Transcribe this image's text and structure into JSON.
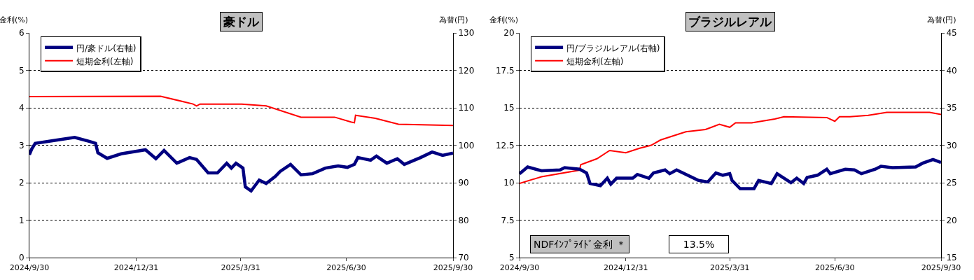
{
  "chart_data": [
    {
      "type": "line",
      "title": "豪ドル",
      "ylabel": "金利(%)",
      "y2label": "為替(円)",
      "grid": "y",
      "legend": "top left",
      "xlim": [
        "2024-09-30",
        "2025-09-30"
      ],
      "xticks": [
        {
          "value": "2024-09-30",
          "label": "2024/9/30"
        },
        {
          "value": "2024-12-31",
          "label": "2024/12/31"
        },
        {
          "value": "2025-03-31",
          "label": "2025/3/31"
        },
        {
          "value": "2025-06-30",
          "label": "2025/6/30"
        },
        {
          "value": "2025-09-30",
          "label": "2025/9/30"
        }
      ],
      "ylim": [
        0,
        6
      ],
      "yticks": [
        0,
        1,
        2,
        3,
        4,
        5,
        6
      ],
      "y2lim": [
        70,
        130
      ],
      "y2ticks": [
        70,
        80,
        90,
        100,
        110,
        120,
        130
      ],
      "series": [
        {
          "name": "円/豪ドル(右軸)",
          "color": "#000080",
          "axis": "y2",
          "x": [
            "2024-09-30",
            "2024-10-02",
            "2024-10-05",
            "2024-10-24",
            "2024-11-08",
            "2024-11-21",
            "2024-11-26",
            "2024-11-28",
            "2024-12-06",
            "2024-12-18",
            "2025-01-08",
            "2025-01-17",
            "2025-01-24",
            "2025-02-04",
            "2025-02-15",
            "2025-02-21",
            "2025-03-03",
            "2025-03-11",
            "2025-03-19",
            "2025-03-23",
            "2025-03-27",
            "2025-04-02",
            "2025-04-04",
            "2025-04-09",
            "2025-04-16",
            "2025-04-22",
            "2025-04-30",
            "2025-05-04",
            "2025-05-13",
            "2025-05-22",
            "2025-06-01",
            "2025-06-12",
            "2025-06-23",
            "2025-07-01",
            "2025-07-07",
            "2025-07-10",
            "2025-07-21",
            "2025-07-26",
            "2025-08-04",
            "2025-08-13",
            "2025-08-19",
            "2025-09-02",
            "2025-09-12",
            "2025-09-21",
            "2025-09-30"
          ],
          "values": [
            97.5,
            99.0,
            100.5,
            101.4,
            102.1,
            101.0,
            100.5,
            98.0,
            96.5,
            97.7,
            98.8,
            96.4,
            98.6,
            95.2,
            96.7,
            96.2,
            92.6,
            92.6,
            95.2,
            93.9,
            95.2,
            93.9,
            88.9,
            87.8,
            90.7,
            89.8,
            91.7,
            93.0,
            94.9,
            92.1,
            92.4,
            93.9,
            94.5,
            94.1,
            94.9,
            96.7,
            96.0,
            97.1,
            95.2,
            96.4,
            94.9,
            96.7,
            98.2,
            97.3,
            97.9
          ]
        },
        {
          "name": "短期金利(左軸)",
          "color": "#ff0000",
          "x": [
            "2024-09-30",
            "2025-01-21",
            "2025-02-18",
            "2025-02-21",
            "2025-02-24",
            "2025-04-01",
            "2025-04-22",
            "2025-05-22",
            "2025-06-20",
            "2025-07-04",
            "2025-07-07",
            "2025-07-08",
            "2025-07-25",
            "2025-08-14",
            "2025-09-30"
          ],
          "values": [
            4.3,
            4.31,
            4.1,
            4.05,
            4.1,
            4.1,
            4.05,
            3.75,
            3.75,
            3.62,
            3.6,
            3.8,
            3.72,
            3.56,
            3.53
          ]
        }
      ]
    },
    {
      "type": "line",
      "title": "ブラジルレアル",
      "ylabel": "金利(%)",
      "y2label": "為替(円)",
      "grid": "y",
      "legend": "top left",
      "xlim": [
        "2024-09-30",
        "2025-09-30"
      ],
      "xticks": [
        {
          "value": "2024-09-30",
          "label": "2024/9/30"
        },
        {
          "value": "2024-12-31",
          "label": "2024/12/31"
        },
        {
          "value": "2025-03-31",
          "label": "2025/3/31"
        },
        {
          "value": "2025-06-30",
          "label": "2025/6/30"
        },
        {
          "value": "2025-09-30",
          "label": "2025/9/30"
        }
      ],
      "ylim": [
        5,
        20
      ],
      "yticks": [
        5,
        7.5,
        10,
        12.5,
        15,
        17.5,
        20
      ],
      "y2lim": [
        15,
        45
      ],
      "y2ticks": [
        15,
        20,
        25,
        30,
        35,
        40,
        45
      ],
      "annotations": [
        "NDFｲﾝﾌﾟﾗｲﾄﾞ金利 ＊",
        "13.5%"
      ],
      "series": [
        {
          "name": "円/ブラジルレアル(右軸)",
          "color": "#000080",
          "axis": "y2",
          "x": [
            "2024-09-30",
            "2024-10-07",
            "2024-10-19",
            "2024-11-04",
            "2024-11-08",
            "2024-11-21",
            "2024-11-27",
            "2024-11-30",
            "2024-12-09",
            "2024-12-15",
            "2024-12-18",
            "2024-12-23",
            "2025-01-06",
            "2025-01-10",
            "2025-01-20",
            "2025-01-24",
            "2025-02-03",
            "2025-02-07",
            "2025-02-13",
            "2025-03-04",
            "2025-03-12",
            "2025-03-19",
            "2025-03-25",
            "2025-03-31",
            "2025-04-02",
            "2025-04-09",
            "2025-04-21",
            "2025-04-25",
            "2025-05-06",
            "2025-05-11",
            "2025-05-23",
            "2025-05-28",
            "2025-06-03",
            "2025-06-06",
            "2025-06-15",
            "2025-06-23",
            "2025-06-26",
            "2025-07-09",
            "2025-07-17",
            "2025-07-23",
            "2025-08-04",
            "2025-08-09",
            "2025-08-19",
            "2025-09-08",
            "2025-09-14",
            "2025-09-23",
            "2025-09-30"
          ],
          "values": [
            26.2,
            27.1,
            26.6,
            26.7,
            27.0,
            26.8,
            26.3,
            24.9,
            24.6,
            25.6,
            24.8,
            25.6,
            25.6,
            26.1,
            25.6,
            26.3,
            26.7,
            26.2,
            26.7,
            25.3,
            25.1,
            26.3,
            26.0,
            26.2,
            25.3,
            24.2,
            24.2,
            25.3,
            24.9,
            26.2,
            25.0,
            25.6,
            24.9,
            25.7,
            26.0,
            26.8,
            26.2,
            26.8,
            26.7,
            26.2,
            26.8,
            27.2,
            27.0,
            27.1,
            27.6,
            28.1,
            27.7
          ]
        },
        {
          "name": "短期金利(左軸)",
          "color": "#ff0000",
          "x": [
            "2024-09-30",
            "2024-10-19",
            "2024-11-21",
            "2024-11-22",
            "2024-12-06",
            "2024-12-17",
            "2024-12-31",
            "2025-01-12",
            "2025-01-22",
            "2025-01-30",
            "2025-02-13",
            "2025-02-21",
            "2025-03-10",
            "2025-03-22",
            "2025-03-31",
            "2025-04-05",
            "2025-04-19",
            "2025-05-09",
            "2025-05-17",
            "2025-06-23",
            "2025-06-30",
            "2025-07-04",
            "2025-07-13",
            "2025-07-29",
            "2025-08-14",
            "2025-08-30",
            "2025-09-20",
            "2025-09-30"
          ],
          "values": [
            9.95,
            10.4,
            10.84,
            11.2,
            11.6,
            12.15,
            12.0,
            12.3,
            12.5,
            12.85,
            13.2,
            13.4,
            13.55,
            13.9,
            13.7,
            14.0,
            14.0,
            14.25,
            14.4,
            14.35,
            14.1,
            14.4,
            14.4,
            14.5,
            14.7,
            14.7,
            14.7,
            14.55
          ]
        }
      ]
    }
  ]
}
